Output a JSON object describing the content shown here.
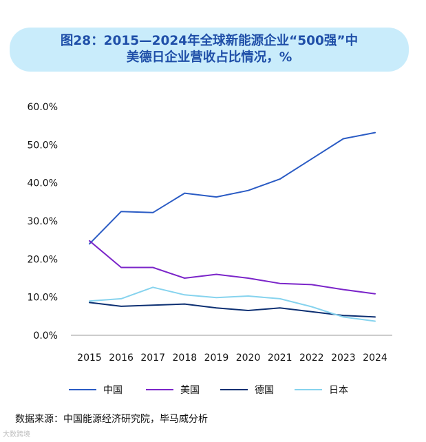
{
  "title": {
    "line1": "图28：2015—2024年全球新能源企业“500强”中",
    "line2": "美德日企业营收占比情况，%"
  },
  "source": "数据来源：中国能源经济研究院，毕马威分析",
  "watermark": "大数跨境",
  "chart_data": {
    "type": "line",
    "x": [
      "2015",
      "2016",
      "2017",
      "2018",
      "2019",
      "2020",
      "2021",
      "2022",
      "2023",
      "2024"
    ],
    "ylim": [
      0,
      60
    ],
    "yticks": [
      "0.0%",
      "10.0%",
      "20.0%",
      "30.0%",
      "40.0%",
      "50.0%",
      "60.0%"
    ],
    "grid": false,
    "legend_position": "bottom",
    "series": [
      {
        "name": "中国",
        "color": "#2a5bc4",
        "values": [
          24.0,
          32.5,
          32.2,
          37.3,
          36.3,
          38.0,
          41.0,
          46.3,
          51.6,
          53.2
        ]
      },
      {
        "name": "美国",
        "color": "#7b25c9",
        "values": [
          24.8,
          17.8,
          17.8,
          15.0,
          16.0,
          15.0,
          13.6,
          13.3,
          12.0,
          10.9
        ]
      },
      {
        "name": "德国",
        "color": "#0c2f72",
        "values": [
          8.6,
          7.6,
          7.9,
          8.2,
          7.2,
          6.5,
          7.2,
          6.2,
          5.2,
          4.8
        ]
      },
      {
        "name": "日本",
        "color": "#86d3ee",
        "values": [
          9.0,
          9.6,
          12.6,
          10.6,
          9.9,
          10.3,
          9.6,
          7.5,
          4.8,
          3.7
        ]
      }
    ]
  }
}
